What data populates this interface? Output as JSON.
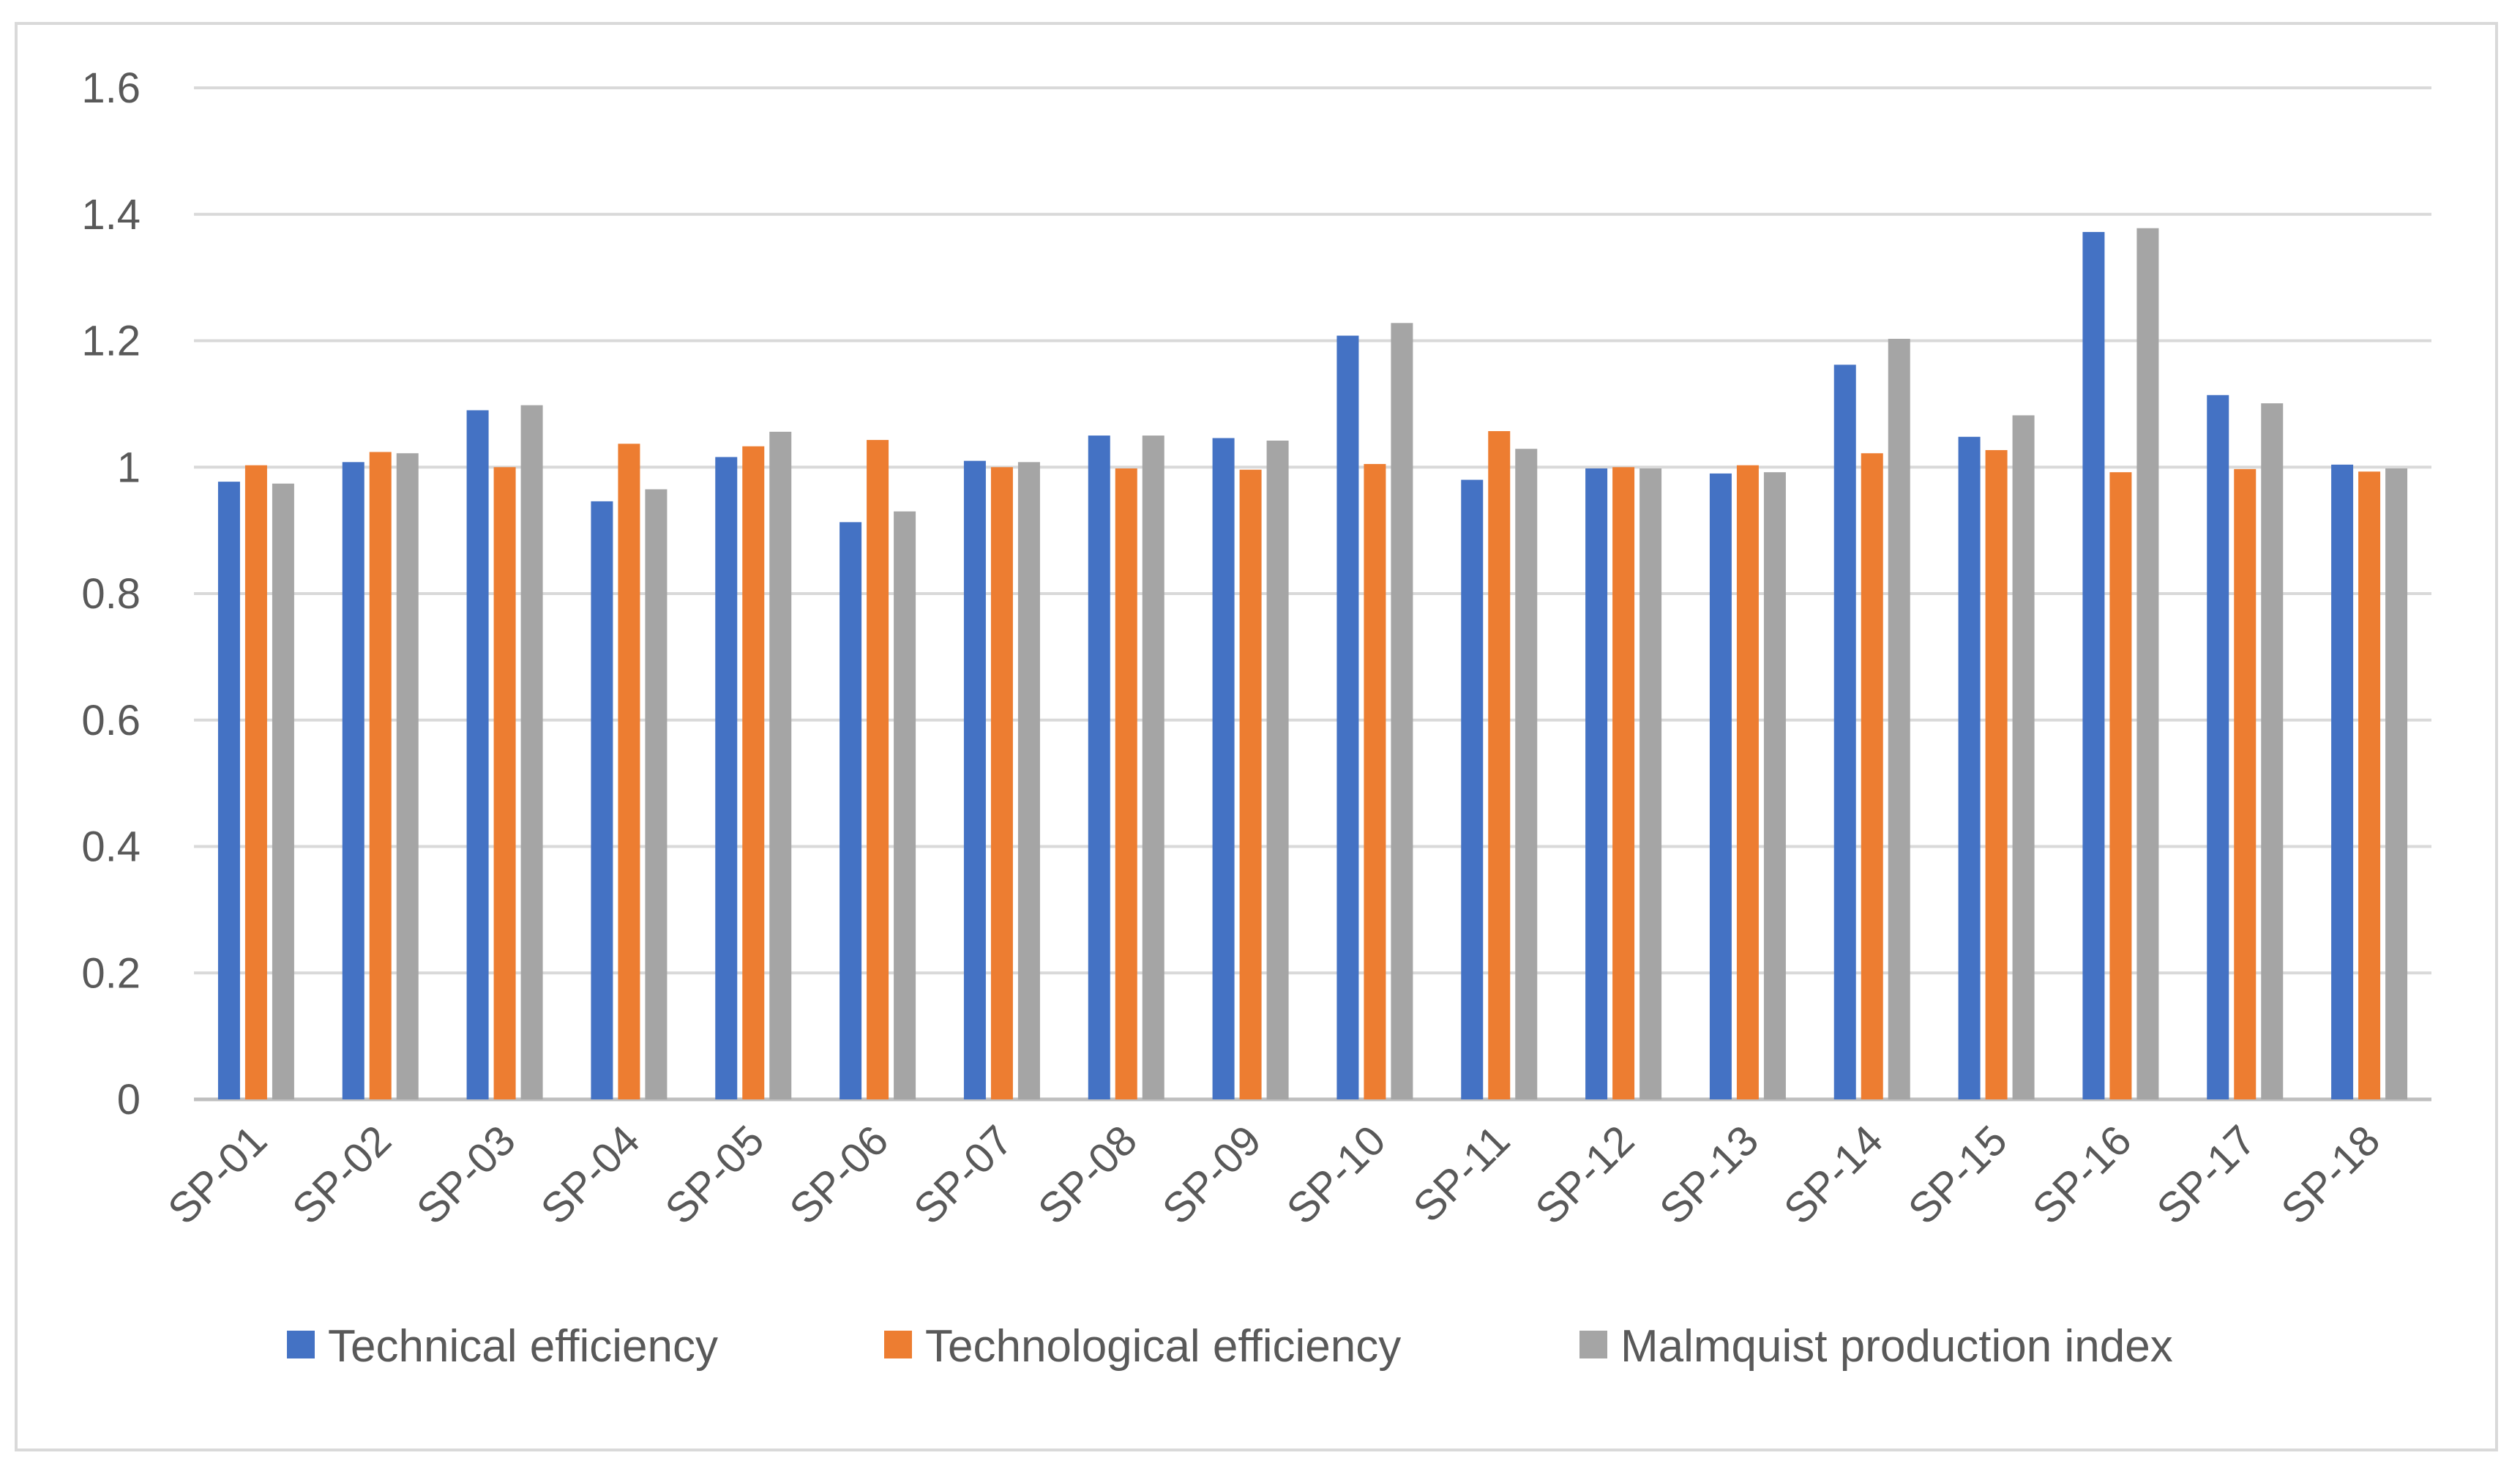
{
  "chart_data": {
    "type": "bar",
    "title": "",
    "xlabel": "",
    "ylabel": "",
    "ylim": [
      0,
      1.6
    ],
    "yticks": [
      0,
      0.2,
      0.4,
      0.6,
      0.8,
      1,
      1.2,
      1.4,
      1.6
    ],
    "ytick_labels": [
      "0",
      "0.2",
      "0.4",
      "0.6",
      "0.8",
      "1",
      "1.2",
      "1.4",
      "1.6"
    ],
    "grid": true,
    "legend_position": "bottom",
    "categories": [
      "SP-01",
      "SP-02",
      "SP-03",
      "SP-04",
      "SP-05",
      "SP-06",
      "SP-07",
      "SP-08",
      "SP-09",
      "SP-10",
      "SP-11",
      "SP-12",
      "SP-13",
      "SP-14",
      "SP-15",
      "SP-16",
      "SP-17",
      "SP-18"
    ],
    "series": [
      {
        "name": "Technical efficiency",
        "color": "#4472c4",
        "values": [
          0.977,
          1.008,
          1.09,
          0.946,
          1.016,
          0.913,
          1.01,
          1.05,
          1.046,
          1.208,
          0.98,
          0.998,
          0.99,
          1.162,
          1.048,
          1.372,
          1.114,
          1.004
        ]
      },
      {
        "name": "Technological efficiency",
        "color": "#ed7d31",
        "values": [
          1.003,
          1.024,
          1.0,
          1.037,
          1.033,
          1.043,
          1.0,
          0.998,
          0.996,
          1.005,
          1.057,
          1.0,
          1.003,
          1.022,
          1.027,
          0.992,
          0.997,
          0.993
        ]
      },
      {
        "name": "Malmquist production index",
        "color": "#a5a5a5",
        "values": [
          0.974,
          1.022,
          1.098,
          0.965,
          1.056,
          0.93,
          1.008,
          1.05,
          1.042,
          1.228,
          1.029,
          0.998,
          0.992,
          1.203,
          1.082,
          1.378,
          1.101,
          0.998
        ]
      }
    ]
  },
  "colors": {
    "gridline": "#d9d9d9",
    "axis_text": "#595959",
    "frame": "#d9d9d9"
  }
}
